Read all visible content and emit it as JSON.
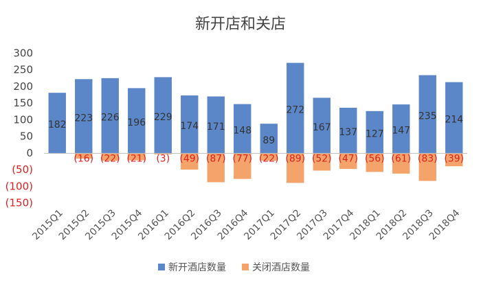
{
  "chart_data": {
    "type": "bar",
    "title": "新开店和关店",
    "categories": [
      "2015Q1",
      "2015Q2",
      "2015Q3",
      "2015Q4",
      "2016Q1",
      "2016Q2",
      "2016Q3",
      "2016Q4",
      "2017Q1",
      "2017Q2",
      "2017Q3",
      "2017Q4",
      "2018Q1",
      "2018Q2",
      "2018Q3",
      "2018Q4"
    ],
    "series": [
      {
        "name": "新开酒店数量",
        "color": "#5b87c9",
        "values": [
          182,
          223,
          226,
          196,
          229,
          174,
          171,
          148,
          89,
          272,
          167,
          137,
          127,
          147,
          235,
          214
        ]
      },
      {
        "name": "关闭酒店数量",
        "color": "#f4a46a",
        "values": [
          null,
          -16,
          -22,
          -21,
          -3,
          -49,
          -87,
          -77,
          -22,
          -89,
          -52,
          -47,
          -56,
          -61,
          -83,
          -39
        ],
        "value_labels": [
          null,
          "(16)",
          "(22)",
          "(21)",
          "(3)",
          "(49)",
          "(87)",
          "(77)",
          "(22)",
          "(89)",
          "(52)",
          "(47)",
          "(56)",
          "(61)",
          "(83)",
          "(39)"
        ]
      }
    ],
    "ylim": [
      -150,
      300
    ],
    "yticks": [
      300,
      250,
      200,
      150,
      100,
      50,
      0,
      {
        "value": -50,
        "label": "(50)"
      },
      {
        "value": -100,
        "label": "(100)"
      },
      {
        "value": -150,
        "label": "(150)"
      }
    ],
    "grid": false,
    "legend": "bottom"
  }
}
